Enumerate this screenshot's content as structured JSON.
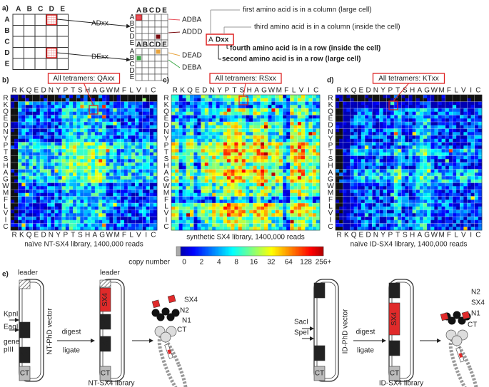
{
  "panel_a": {
    "label": "a)",
    "columns": [
      "A",
      "B",
      "C",
      "D",
      "E"
    ],
    "rows": [
      "A",
      "B",
      "C",
      "D",
      "E"
    ],
    "group1": "ADxx",
    "group2": "DExx",
    "examples": [
      "ADBA",
      "ADDD",
      "DEAD",
      "DEBA"
    ],
    "legend": {
      "first": "first amino acid is in a column (large cell)",
      "third": "third amino acid is in a column  (inside the cell)",
      "key_first": "A",
      "key_rest": "Dxx",
      "fourth": "fourth amino acid is in a row (inside the cell)",
      "second": "second amino acid is in a row (large cell)"
    }
  },
  "amino_acids": [
    "R",
    "K",
    "Q",
    "E",
    "D",
    "N",
    "Y",
    "P",
    "T",
    "S",
    "H",
    "A",
    "G",
    "W",
    "M",
    "F",
    "L",
    "V",
    "I",
    "C"
  ],
  "heatmaps": [
    {
      "label": "b)",
      "box": "All tetramers: QAxx",
      "caption": "naïve NT-SX4 library,  1400,000 reads"
    },
    {
      "label": "c)",
      "box": "All tetramers: RSxx",
      "caption": "synthetic SX4 library,  1400,000 reads"
    },
    {
      "label": "d)",
      "box": "All tetramers: KTxx",
      "caption": "naïve ID-SX4 library,  1400,000 reads"
    }
  ],
  "colorbar": {
    "title": "copy number",
    "ticks": [
      0,
      2,
      4,
      8,
      16,
      32,
      64,
      128,
      {
        "value": 256,
        "label": "256+"
      }
    ]
  },
  "panel_e": {
    "label": "e)",
    "left": {
      "leader": "leader",
      "site1": "KpnI",
      "site2": "EagI",
      "gene": [
        "gene",
        "pIII"
      ],
      "N2": "N2",
      "N1": "N1",
      "CT": "CT",
      "SX4": "SX4",
      "vector": "NT-PhD vector",
      "digest": "digest",
      "ligate": "ligate",
      "library": "NT-SX4 library"
    },
    "right": {
      "site1": "SacI",
      "site2": "SpeI",
      "N2": "N2",
      "N1": "N1",
      "CT": "CT",
      "SX4": "SX4",
      "vector": "ID-PhD vector",
      "digest": "digest",
      "ligate": "ligate",
      "library": "ID-SX4 library"
    }
  }
}
